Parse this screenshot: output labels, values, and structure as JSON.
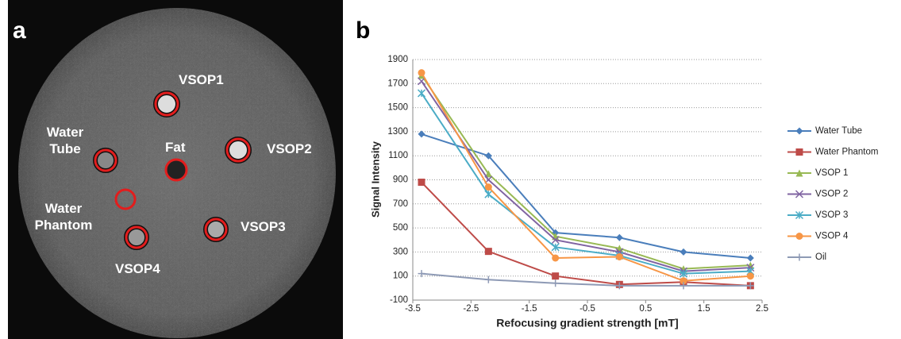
{
  "image_panel": {
    "label": "a",
    "annotations": [
      "VSOP1",
      "Water Tube",
      "Fat",
      "VSOP2",
      "Water Phantom",
      "VSOP3",
      "VSOP4"
    ]
  },
  "chart_data": {
    "type": "line",
    "panel_label": "b",
    "x_label": "Refocusing gradient strength [mT]",
    "y_label": "Signal Intensity",
    "x": [
      -3.35,
      -2.2,
      -1.05,
      0.05,
      1.15,
      2.3
    ],
    "xlim": [
      -3.5,
      2.5
    ],
    "xticks": [
      -3.5,
      -2.5,
      -1.5,
      -0.5,
      0.5,
      1.5,
      2.5
    ],
    "ylim": [
      -100,
      1900
    ],
    "yticks": [
      -100,
      100,
      300,
      500,
      700,
      900,
      1100,
      1300,
      1500,
      1700,
      1900
    ],
    "grid": true,
    "legend": "right",
    "series": [
      {
        "name": "Water Tube",
        "color": "#4a7ebb",
        "marker": "diamond",
        "values": [
          1280,
          1100,
          460,
          420,
          300,
          250
        ]
      },
      {
        "name": "Water Phantom",
        "color": "#be4b48",
        "marker": "square",
        "values": [
          880,
          305,
          100,
          30,
          50,
          20
        ]
      },
      {
        "name": "VSOP 1",
        "color": "#98b954",
        "marker": "triangle",
        "values": [
          1770,
          950,
          430,
          330,
          160,
          190
        ]
      },
      {
        "name": "VSOP 2",
        "color": "#8064a2",
        "marker": "x",
        "values": [
          1720,
          900,
          400,
          300,
          140,
          170
        ]
      },
      {
        "name": "VSOP 3",
        "color": "#4bacc6",
        "marker": "star",
        "values": [
          1620,
          780,
          340,
          270,
          120,
          140
        ]
      },
      {
        "name": "VSOP 4",
        "color": "#f79646",
        "marker": "circle",
        "values": [
          1790,
          840,
          250,
          260,
          60,
          100
        ]
      },
      {
        "name": "Oil",
        "color": "#8e9ab5",
        "marker": "plus",
        "values": [
          120,
          70,
          40,
          20,
          20,
          20
        ]
      }
    ]
  }
}
